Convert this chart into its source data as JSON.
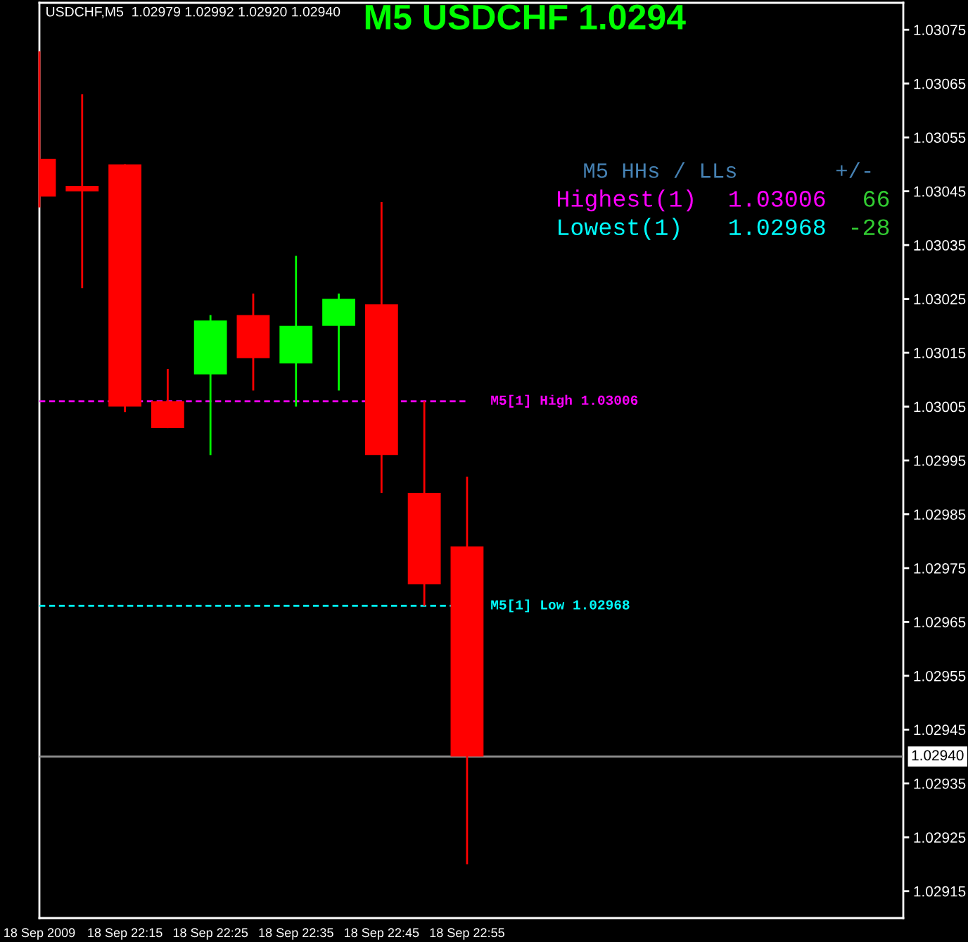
{
  "chart_data": {
    "type": "candlestick",
    "title": "M5 USDCHF 1.0294",
    "subtitle": "USDCHF,M5  1.02979 1.02992 1.02920 1.02940",
    "x": [
      "2009-09-18T22:05",
      "2009-09-18T22:10",
      "2009-09-18T22:15",
      "2009-09-18T22:20",
      "2009-09-18T22:25",
      "2009-09-18T22:30",
      "2009-09-18T22:35",
      "2009-09-18T22:40",
      "2009-09-18T22:45",
      "2009-09-18T22:50",
      "2009-09-18T22:55"
    ],
    "ohlc": [
      [
        1.03051,
        1.03071,
        1.03042,
        1.03044
      ],
      [
        1.03046,
        1.03063,
        1.03027,
        1.03045
      ],
      [
        1.0305,
        1.0305,
        1.03004,
        1.03005
      ],
      [
        1.03006,
        1.03012,
        1.03001,
        1.03001
      ],
      [
        1.03011,
        1.03022,
        1.02996,
        1.03021
      ],
      [
        1.03022,
        1.03026,
        1.03008,
        1.03014
      ],
      [
        1.03013,
        1.03033,
        1.03005,
        1.0302
      ],
      [
        1.0302,
        1.03026,
        1.03008,
        1.03025
      ],
      [
        1.03024,
        1.03043,
        1.02989,
        1.02996
      ],
      [
        1.02989,
        1.03006,
        1.02968,
        1.02972
      ],
      [
        1.02979,
        1.02992,
        1.0292,
        1.0294
      ]
    ],
    "colors": [
      "#ff0000",
      "#ff0000",
      "#ff0000",
      "#ff0000",
      "#00ff00",
      "#ff0000",
      "#00ff00",
      "#00ff00",
      "#ff0000",
      "#ff0000",
      "#ff0000"
    ],
    "xlim": [
      "2009-09-18T22:05",
      "2009-09-18T23:46"
    ],
    "xticks": [
      {
        "value": "2009-09-18T22:05",
        "label": "18 Sep 2009"
      },
      {
        "value": "2009-09-18T22:15",
        "label": "18 Sep 22:15"
      },
      {
        "value": "2009-09-18T22:25",
        "label": "18 Sep 22:25"
      },
      {
        "value": "2009-09-18T22:35",
        "label": "18 Sep 22:35"
      },
      {
        "value": "2009-09-18T22:45",
        "label": "18 Sep 22:45"
      },
      {
        "value": "2009-09-18T22:55",
        "label": "18 Sep 22:55"
      }
    ],
    "ylim": [
      1.0291,
      1.0308
    ],
    "yticks": [
      1.02915,
      1.02925,
      1.02935,
      1.02945,
      1.02955,
      1.02965,
      1.02975,
      1.02985,
      1.02995,
      1.03005,
      1.03015,
      1.03025,
      1.03035,
      1.03045,
      1.03055,
      1.03065,
      1.03075
    ],
    "grid": false,
    "ref_lines": [
      {
        "axis": "y",
        "value": 1.03006,
        "label": "M5[1] High 1.03006",
        "color": "#ff00ff",
        "line_style": "dashed"
      },
      {
        "axis": "y",
        "value": 1.02968,
        "label": "M5[1] Low 1.02968",
        "color": "#00ffff",
        "line_style": "dashed"
      },
      {
        "axis": "y",
        "value": 1.0294,
        "label": "1.02940",
        "color": "#909090",
        "line_style": "solid"
      }
    ],
    "annotations": [
      "M5 HHs / LLs",
      "+/-",
      "Highest(1)",
      "1.03006",
      "66",
      "Lowest(1)",
      "1.02968",
      "-28"
    ]
  }
}
